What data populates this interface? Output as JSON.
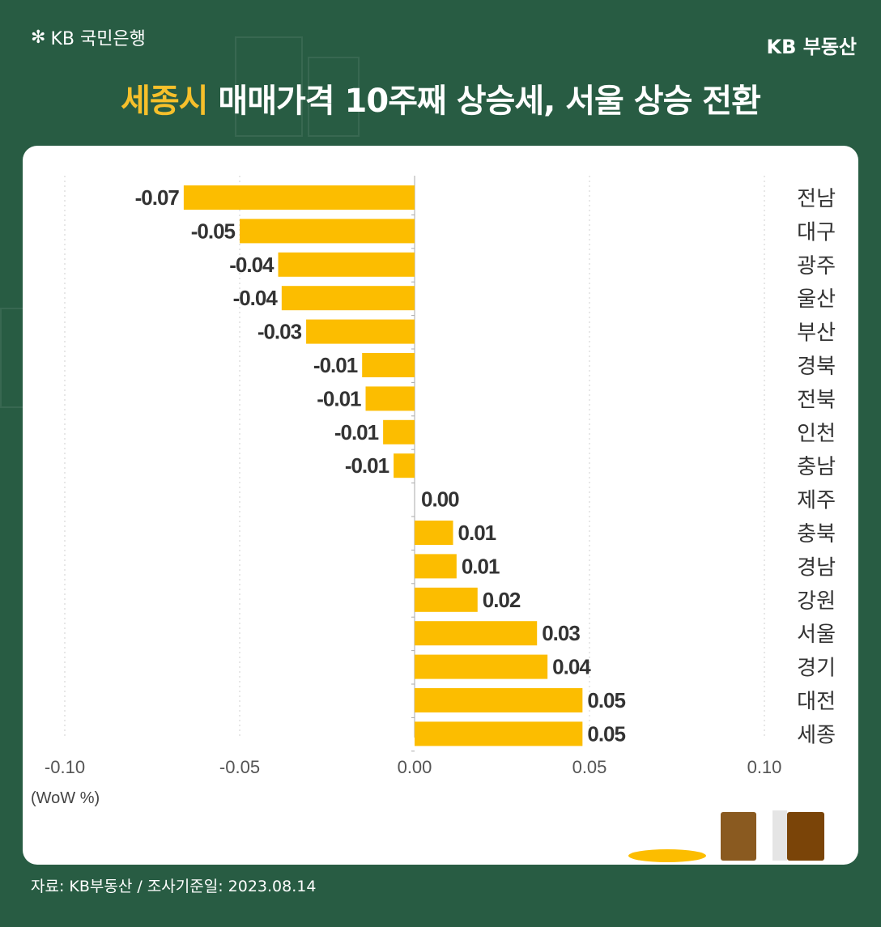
{
  "header": {
    "logo_text": "KB 국민은행",
    "brand": "KB 부동산",
    "title_highlight": "세종시",
    "title_rest": " 매매가격 10주째 상승세, 서울 상승 전환"
  },
  "footer": {
    "source": "자료: KB부동산 / 조사기준일: 2023.08.14"
  },
  "colors": {
    "background": "#285c43",
    "bar": "#fcbd00",
    "text": "#333333"
  },
  "chart_data": {
    "type": "bar",
    "orientation": "horizontal",
    "title": "세종시 매매가격 10주째 상승세, 서울 상승 전환",
    "xlabel": "(WoW %)",
    "xlim": [
      -0.1,
      0.1
    ],
    "xticks": [
      "-0.10",
      "-0.05",
      "0.00",
      "0.05",
      "0.10"
    ],
    "xtick_values": [
      -0.1,
      -0.05,
      0.0,
      0.05,
      0.1
    ],
    "grid": true,
    "categories": [
      "전남",
      "대구",
      "광주",
      "울산",
      "부산",
      "경북",
      "전북",
      "인천",
      "충남",
      "제주",
      "충북",
      "경남",
      "강원",
      "서울",
      "경기",
      "대전",
      "세종"
    ],
    "values": [
      -0.066,
      -0.05,
      -0.039,
      -0.038,
      -0.031,
      -0.015,
      -0.014,
      -0.009,
      -0.006,
      0.0,
      0.011,
      0.012,
      0.018,
      0.035,
      0.038,
      0.048,
      0.048
    ],
    "value_labels": [
      "-0.07",
      "-0.05",
      "-0.04",
      "-0.04",
      "-0.03",
      "-0.01",
      "-0.01",
      "-0.01",
      "-0.01",
      "0.00",
      "0.01",
      "0.01",
      "0.02",
      "0.03",
      "0.04",
      "0.05",
      "0.05"
    ]
  }
}
